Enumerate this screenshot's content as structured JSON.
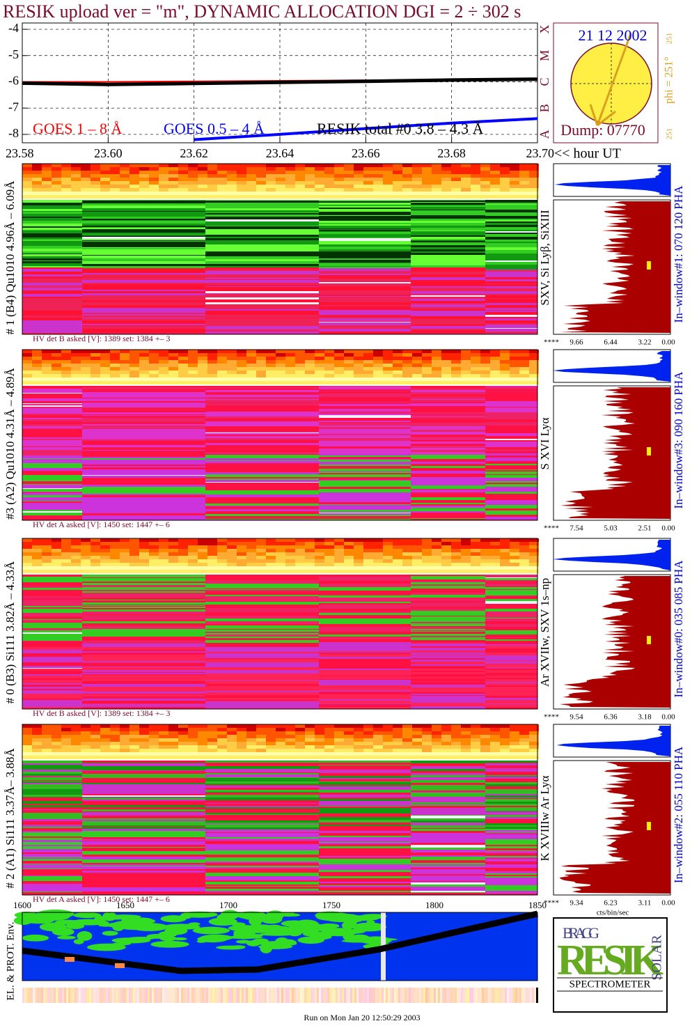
{
  "title": "RESIK upload ver = \"m\", DYNAMIC ALLOCATION  DGI =   2 ÷ 302 s",
  "chart_data": {
    "type": "line",
    "x": [
      23.58,
      23.6,
      23.62,
      23.64,
      23.66,
      23.68,
      23.7
    ],
    "xlim": [
      23.58,
      23.7
    ],
    "ylim": [
      -8.32,
      -3.76
    ],
    "xticks": [
      23.58,
      {
        "value": 23.6,
        "label": "23.60"
      },
      23.62,
      23.64,
      23.66,
      23.68,
      {
        "value": 23.7,
        "label": "23.70"
      }
    ],
    "yticks": [
      -4,
      -5,
      -6,
      -7,
      -8
    ],
    "grid": true,
    "xlabel": "<< hour UT",
    "class_labels": [
      "A",
      "B",
      "C",
      "M",
      "X"
    ],
    "series": [
      {
        "name": "GOES 1 – 8 Å",
        "color": "#ff0000",
        "values": [
          -6.0,
          -6.0,
          -5.98,
          -5.96,
          -5.94,
          -5.91,
          -5.88
        ]
      },
      {
        "name": "GOES 0.5 – 4 Å",
        "color": "#0000ff",
        "values": [
          null,
          null,
          -8.2,
          -8.0,
          -7.78,
          -7.57,
          -7.4
        ]
      },
      {
        "name": "RESIK total #0  3.8 – 4.3 Å",
        "color": "#000000",
        "values": [
          -6.05,
          -6.1,
          -6.06,
          -6.02,
          -5.98,
          -5.93,
          -5.9
        ]
      }
    ]
  },
  "sun": {
    "date": "21 12 2002",
    "phi": "phi = 251°",
    "phi_top": "251",
    "phi_bottom": "251",
    "dump": "Dump: 07770"
  },
  "detectors": [
    {
      "label": "# 1 (B4) Qu1010 4.96Å – 6.09Å",
      "lines": "SXV, Si Lyβ, SiXIII",
      "hv": "HV det B asked [V]:  1389 set:  1384 +–   3",
      "scale": [
        "****",
        "9.66",
        "6.44",
        "3.22",
        "0.00"
      ],
      "window": "In–window#1:  070 120 PHA"
    },
    {
      "label": "#3 (A2) Qu1010  4.31Å – 4.89Å",
      "lines": "S XVI Lyα",
      "hv": "HV det A asked [V]:  1450 set:  1447 +–   6",
      "scale": [
        "****",
        "7.54",
        "5.03",
        "2.51",
        "0.00"
      ],
      "window": "In–window#3:  090 160 PHA"
    },
    {
      "label": "# 0 (B3) Si111  3.82Å – 4.33Å",
      "lines": "Ar XVIIw,  SXV 1s–np",
      "hv": "HV det B asked [V]:  1389 set:  1384 +–   3",
      "scale": [
        "****",
        "9.54",
        "6.36",
        "3.18",
        "0.00"
      ],
      "window": "In–window#0:  035 085 PHA"
    },
    {
      "label": "# 2 (A1) Si111  3.37Å– 3.88Å",
      "lines": "K XVIIIw  Ar Lyα",
      "hv": "HV det A asked [V]:  1450 set:  1447 +–   6",
      "scale": [
        "****",
        "9.34",
        "6.23",
        "3.11",
        "0.00"
      ],
      "window": "In–window#2:  055 110 PHA"
    }
  ],
  "channel_axis": {
    "ticks": [
      "1600",
      "1650",
      "1700",
      "1750",
      "1800",
      "1850"
    ],
    "unit": "cts/bin/sec"
  },
  "env_label": "EL. & PROT. Env.",
  "logo": {
    "bragg": "BRAGG",
    "resik": "RESIK",
    "solar": "SOLAR",
    "name": "SPECTROMETER"
  },
  "footer": "Run on Mon Jan 20 12:50:29 2003"
}
